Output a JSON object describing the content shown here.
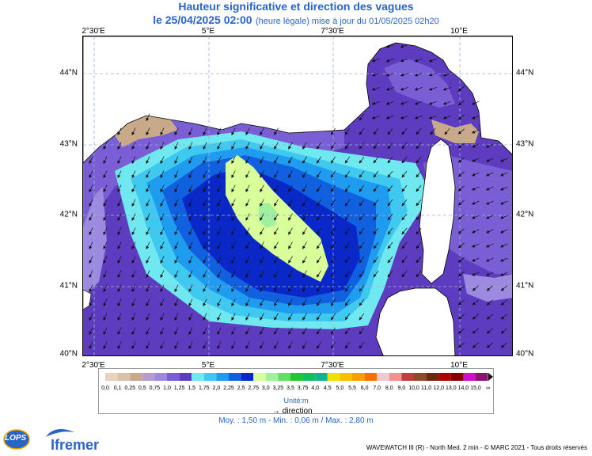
{
  "title": "Hauteur significative et direction des vagues",
  "subtitle_date": "le 25/04/2025 02:00",
  "subtitle_note": "(heure légale) mise à jour du 01/05/2025 02h20",
  "lon_ticks": [
    "2°30'E",
    "5°E",
    "7°30'E",
    "10°E"
  ],
  "lat_ticks": [
    "44°N",
    "43°N",
    "42°N",
    "41°N",
    "40°N"
  ],
  "legend": {
    "labels": [
      "0,0",
      "0,1",
      "0,25",
      "0,5",
      "0,75",
      "1,0",
      "1,25",
      "1,5",
      "1,75",
      "2,0",
      "2,25",
      "2,5",
      "2,75",
      "3,0",
      "3,25",
      "3,5",
      "3,75",
      "4,0",
      "4,5",
      "5,0",
      "5,5",
      "6,0",
      "7,0",
      "8,0",
      "9,0",
      "10,0",
      "11,0",
      "12,0",
      "13,0",
      "14,0",
      "15,0",
      "∞"
    ],
    "colors": [
      "#e8d3bf",
      "#d9c0a6",
      "#c8aa8a",
      "#b59ecd",
      "#9b8ae0",
      "#7a5ed6",
      "#5e3cc0",
      "#70e8f0",
      "#3fc8f0",
      "#1f9cf0",
      "#1060e0",
      "#0a28c8",
      "#d8ff9a",
      "#a0f0a0",
      "#60e060",
      "#20c830",
      "#10c060",
      "#14b090",
      "#f0e000",
      "#f8c000",
      "#f8a000",
      "#f87000",
      "#f0c8d0",
      "#f09090",
      "#c04040",
      "#8c4c2c",
      "#6e2810",
      "#b00000",
      "#880000",
      "#cc10cc",
      "#8a1470"
    ],
    "unit": "Unité:m"
  },
  "direction_label": "direction",
  "stats": "Moy. : 1,50 m   -   Min. : 0,06 m / Max. : 2,80 m",
  "credit": "WAVEWATCH III (R) - North Med. 2 min - © MARC 2021 - Tous droits réservés",
  "logos": {
    "lops": "LOPS",
    "ifremer": "Ifremer"
  }
}
